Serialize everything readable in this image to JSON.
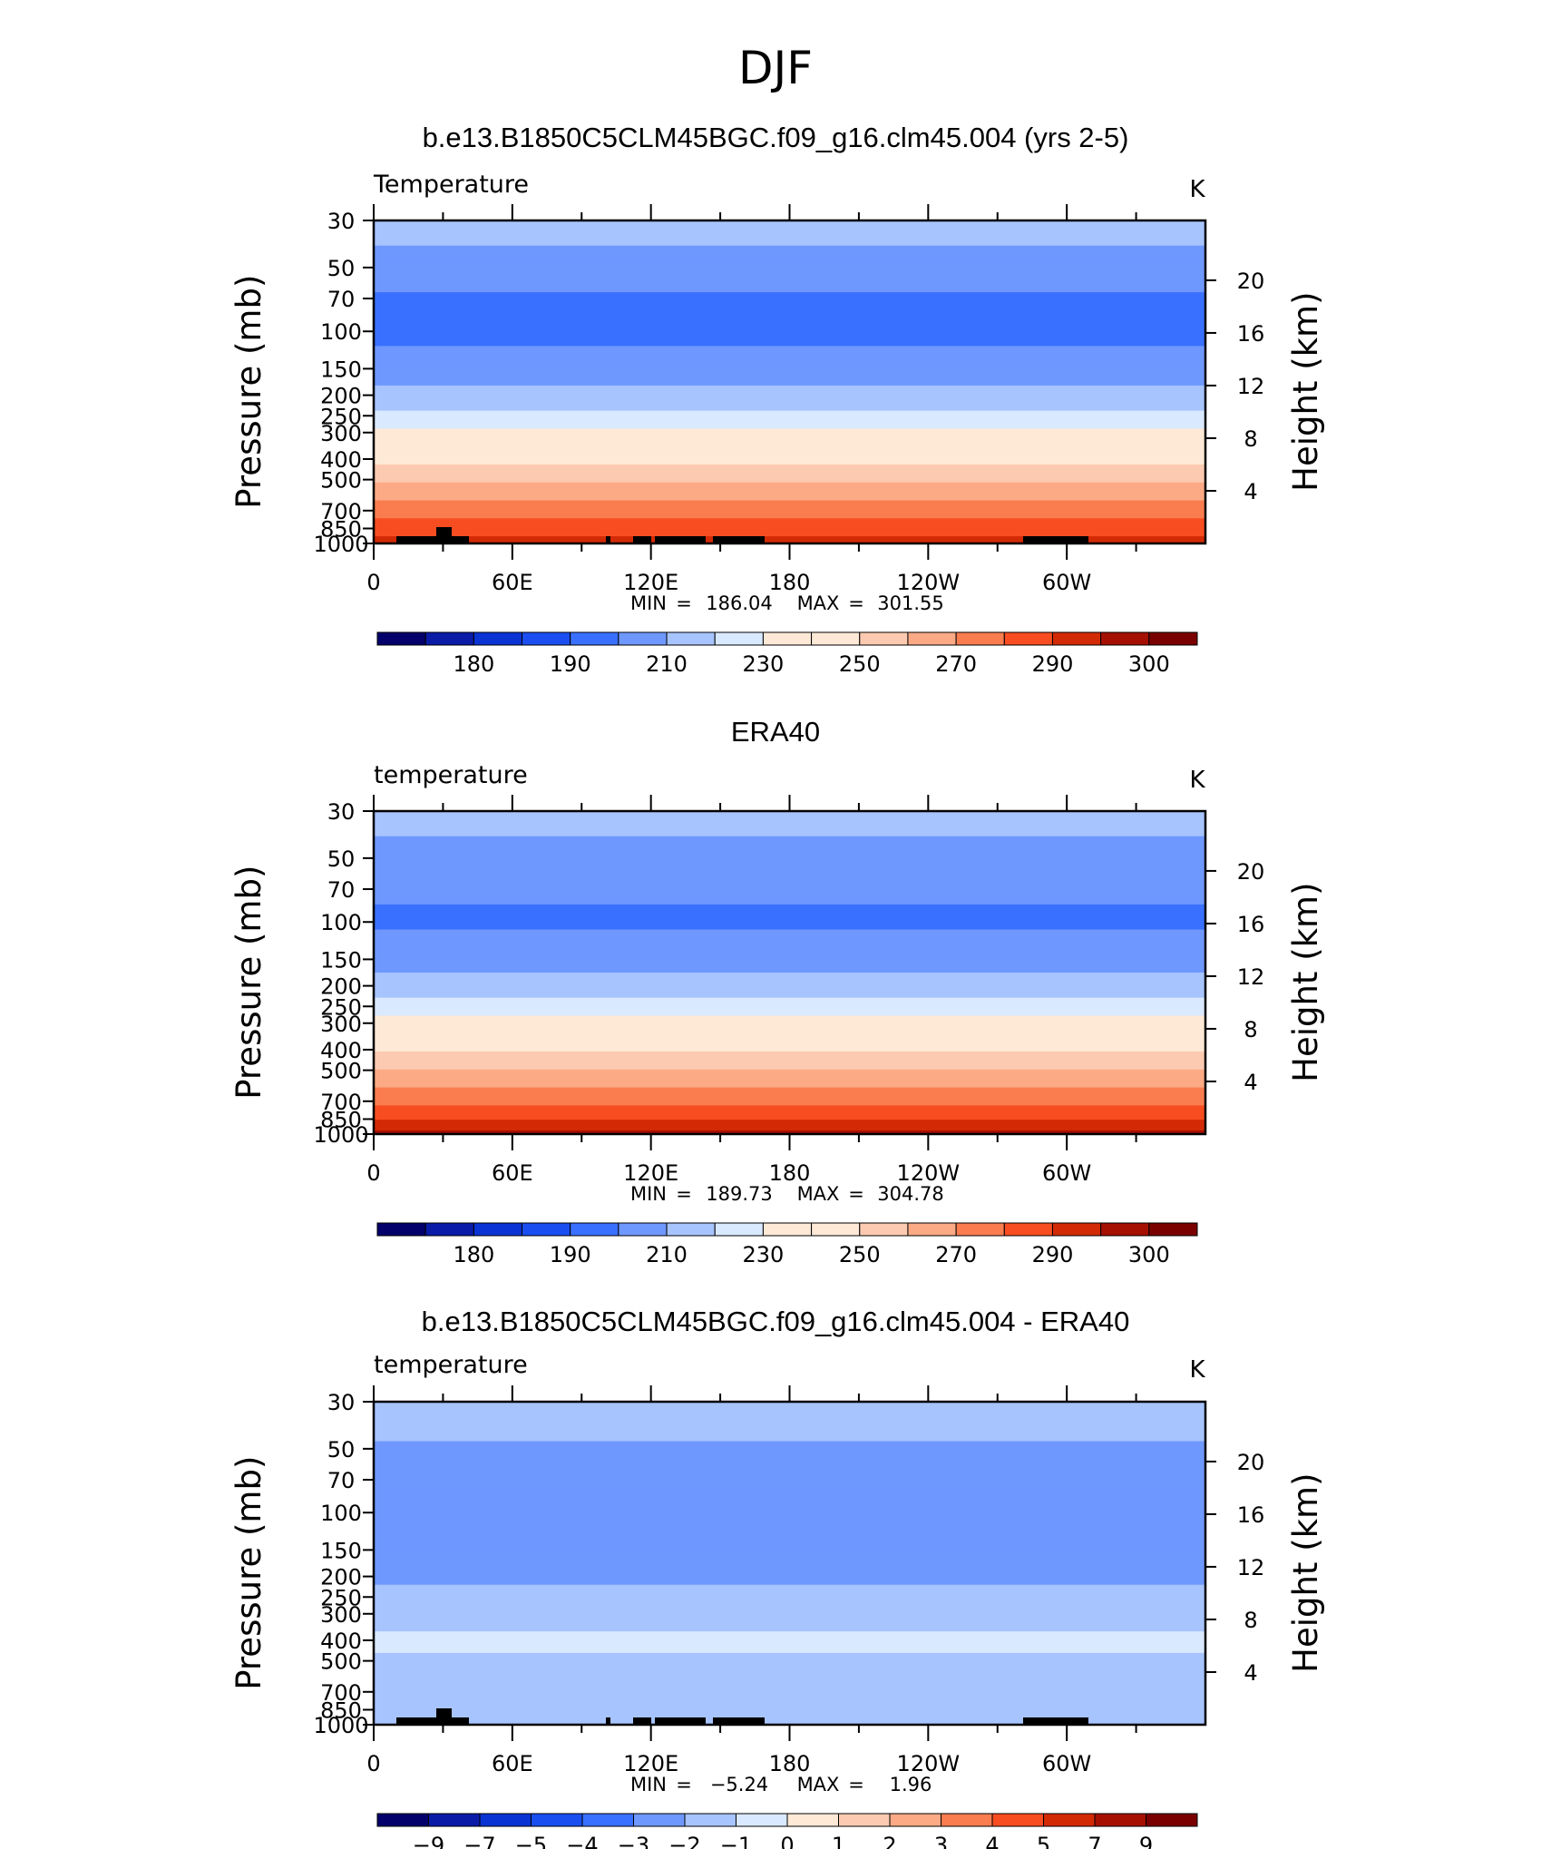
{
  "page_title": "DJF",
  "chart_data": [
    {
      "type": "heatmap",
      "title": "b.e13.B1850C5CLM45BGC.f09_g16.clm45.004 (yrs 2-5)",
      "left_label": "Temperature",
      "units": "K",
      "ylabel": "Pressure (mb)",
      "ylabel_right": "Height (km)",
      "x_ticks": [
        "0",
        "60E",
        "120E",
        "180",
        "120W",
        "60W"
      ],
      "y_ticks": [
        "30",
        "50",
        "70",
        "100",
        "150",
        "200",
        "250",
        "300",
        "400",
        "500",
        "700",
        "850",
        "1000"
      ],
      "y_ticks_right": [
        "20",
        "16",
        "12",
        "8",
        "4"
      ],
      "stats": {
        "min_label": "MIN",
        "min": "186.04",
        "max_label": "MAX",
        "max": "301.55"
      },
      "levels": [
        175,
        180,
        185,
        190,
        200,
        210,
        220,
        230,
        240,
        250,
        260,
        270,
        280,
        290,
        295,
        300
      ],
      "colorbar_labels": [
        "180",
        "190",
        "210",
        "230",
        "250",
        "270",
        "290",
        "300"
      ],
      "profile": [
        {
          "p": 30,
          "v": 215
        },
        {
          "p": 40,
          "v": 210
        },
        {
          "p": 50,
          "v": 205
        },
        {
          "p": 70,
          "v": 199
        },
        {
          "p": 100,
          "v": 197
        },
        {
          "p": 150,
          "v": 204
        },
        {
          "p": 200,
          "v": 213
        },
        {
          "p": 250,
          "v": 222
        },
        {
          "p": 300,
          "v": 234
        },
        {
          "p": 400,
          "v": 248
        },
        {
          "p": 500,
          "v": 259
        },
        {
          "p": 700,
          "v": 276
        },
        {
          "p": 850,
          "v": 286
        },
        {
          "p": 1000,
          "v": 293
        }
      ]
    },
    {
      "type": "heatmap",
      "title": "ERA40",
      "left_label": "temperature",
      "units": "K",
      "ylabel": "Pressure (mb)",
      "ylabel_right": "Height (km)",
      "x_ticks": [
        "0",
        "60E",
        "120E",
        "180",
        "120W",
        "60W"
      ],
      "y_ticks": [
        "30",
        "50",
        "70",
        "100",
        "150",
        "200",
        "250",
        "300",
        "400",
        "500",
        "700",
        "850",
        "1000"
      ],
      "y_ticks_right": [
        "20",
        "16",
        "12",
        "8",
        "4"
      ],
      "stats": {
        "min_label": "MIN",
        "min": "189.73",
        "max_label": "MAX",
        "max": "304.78"
      },
      "levels": [
        175,
        180,
        185,
        190,
        200,
        210,
        220,
        230,
        240,
        250,
        260,
        270,
        280,
        290,
        295,
        300
      ],
      "colorbar_labels": [
        "180",
        "190",
        "210",
        "230",
        "250",
        "270",
        "290",
        "300"
      ],
      "profile": [
        {
          "p": 30,
          "v": 215
        },
        {
          "p": 40,
          "v": 210
        },
        {
          "p": 50,
          "v": 205
        },
        {
          "p": 70,
          "v": 201
        },
        {
          "p": 100,
          "v": 199
        },
        {
          "p": 150,
          "v": 205
        },
        {
          "p": 200,
          "v": 214
        },
        {
          "p": 250,
          "v": 224
        },
        {
          "p": 300,
          "v": 235
        },
        {
          "p": 400,
          "v": 249
        },
        {
          "p": 500,
          "v": 261
        },
        {
          "p": 700,
          "v": 278
        },
        {
          "p": 850,
          "v": 289
        },
        {
          "p": 1000,
          "v": 297
        }
      ]
    },
    {
      "type": "heatmap",
      "title": "b.e13.B1850C5CLM45BGC.f09_g16.clm45.004 - ERA40",
      "left_label": "temperature",
      "units": "K",
      "ylabel": "Pressure (mb)",
      "ylabel_right": "Height (km)",
      "x_ticks": [
        "0",
        "60E",
        "120E",
        "180",
        "120W",
        "60W"
      ],
      "y_ticks": [
        "30",
        "50",
        "70",
        "100",
        "150",
        "200",
        "250",
        "300",
        "400",
        "500",
        "700",
        "850",
        "1000"
      ],
      "y_ticks_right": [
        "20",
        "16",
        "12",
        "8",
        "4"
      ],
      "stats": {
        "min_label": "MIN",
        "min": "−5.24",
        "max_label": "MAX",
        "max": "1.96"
      },
      "levels": [
        -9,
        -7,
        -5,
        -4,
        -3,
        -2,
        -1,
        0,
        1,
        2,
        3,
        4,
        5,
        7,
        9
      ],
      "colorbar_labels": [
        "−9",
        "−7",
        "−5",
        "−4",
        "−3",
        "−2",
        "−1",
        "0",
        "1",
        "2",
        "3",
        "4",
        "5",
        "7",
        "9"
      ],
      "profile": [
        {
          "p": 30,
          "v": -1.5
        },
        {
          "p": 50,
          "v": -2.1
        },
        {
          "p": 70,
          "v": -2.8
        },
        {
          "p": 100,
          "v": -2.4
        },
        {
          "p": 150,
          "v": -2.6
        },
        {
          "p": 200,
          "v": -2.1
        },
        {
          "p": 250,
          "v": -1.8
        },
        {
          "p": 300,
          "v": -1.5
        },
        {
          "p": 400,
          "v": -0.8
        },
        {
          "p": 500,
          "v": -1.1
        },
        {
          "p": 700,
          "v": -1.6
        },
        {
          "p": 850,
          "v": -1.8
        },
        {
          "p": 1000,
          "v": -1.2
        }
      ]
    }
  ],
  "colors": {
    "palette": [
      "#03006b",
      "#0a1ba8",
      "#0a33d4",
      "#1a4ef0",
      "#3a70ff",
      "#6f98ff",
      "#a7c4ff",
      "#d9e9ff",
      "#fde9d6",
      "#fccab0",
      "#fbaa85",
      "#f97d4f",
      "#f74d21",
      "#d32a06",
      "#a61002",
      "#7a0000"
    ],
    "topography": "#000000"
  }
}
